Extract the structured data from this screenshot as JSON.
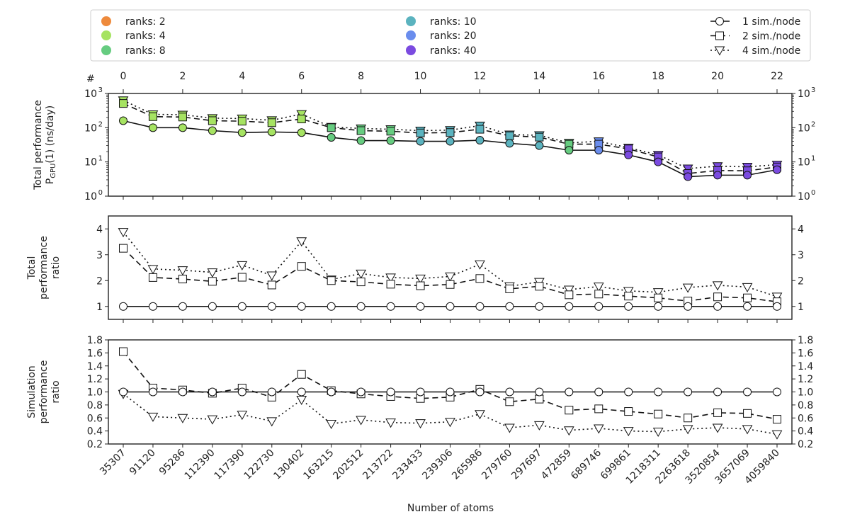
{
  "chart_data": {
    "type": "line",
    "xlabel": "Number of atoms",
    "top_axis_marker": "#",
    "top_axis_ticks": [
      "0",
      "2",
      "4",
      "6",
      "8",
      "10",
      "12",
      "14",
      "16",
      "18",
      "20",
      "22"
    ],
    "categories": [
      "35307",
      "91120",
      "95286",
      "112390",
      "117390",
      "122730",
      "130402",
      "163215",
      "202512",
      "213722",
      "233433",
      "239306",
      "265986",
      "279760",
      "297697",
      "472859",
      "689746",
      "699861",
      "1218311",
      "2263618",
      "3520854",
      "3657069",
      "4059840"
    ],
    "legend": {
      "ranks": [
        {
          "label": "ranks: 2",
          "color": "#ee8a3c"
        },
        {
          "label": "ranks: 4",
          "color": "#a6e362"
        },
        {
          "label": "ranks: 8",
          "color": "#66cc80"
        },
        {
          "label": "ranks: 10",
          "color": "#5bb3bf"
        },
        {
          "label": "ranks: 20",
          "color": "#6a8ded"
        },
        {
          "label": "ranks: 40",
          "color": "#7b4be0"
        }
      ],
      "styles": [
        {
          "label": "1 sim./node",
          "dash": "solid",
          "marker": "circle"
        },
        {
          "label": "2 sim./node",
          "dash": "dashed",
          "marker": "square"
        },
        {
          "label": "4 sim./node",
          "dash": "dotted",
          "marker": "triangle-down"
        }
      ]
    },
    "rank_index_per_point": [
      1,
      1,
      1,
      1,
      1,
      1,
      1,
      2,
      2,
      2,
      3,
      3,
      3,
      3,
      3,
      2,
      4,
      5,
      5,
      5,
      5,
      5,
      5
    ],
    "panels": [
      {
        "ylabel_lines": [
          "Total performance",
          "P",
          "GPU",
          "(1) (ns/day)"
        ],
        "scale": "log",
        "ylim": [
          1,
          1000
        ],
        "ytick_labels": [
          "10",
          "10",
          "10",
          "10"
        ],
        "ytick_exponents": [
          "0",
          "1",
          "2",
          "3"
        ],
        "series": [
          {
            "name": "1 sim./node",
            "values": [
              160,
              100,
              100,
              82,
              72,
              75,
              72,
              52,
              42,
              42,
              40,
              40,
              43,
              35,
              30,
              22,
              22,
              16,
              10,
              3.7,
              4.1,
              4.1,
              5.9
            ]
          },
          {
            "name": "2 sim./node",
            "values": [
              510,
              210,
              205,
              160,
              155,
              140,
              180,
              100,
              82,
              79,
              70,
              72,
              90,
              58,
              53,
              33,
              33,
              24,
              14,
              4.6,
              5.6,
              5.5,
              7.1
            ]
          },
          {
            "name": "4 sim./node",
            "values": [
              630,
              245,
              240,
              190,
              185,
              165,
              250,
              105,
              95,
              90,
              82,
              85,
              115,
              63,
              60,
              36,
              40,
              26,
              16,
              6.4,
              7.5,
              7.2,
              8.3
            ]
          }
        ]
      },
      {
        "ylabel_lines": [
          "Total",
          "performance",
          "ratio"
        ],
        "scale": "linear",
        "ylim": [
          0.5,
          4.5
        ],
        "yticks": [
          1,
          2,
          3,
          4
        ],
        "ytick_labels": [
          "1",
          "2",
          "3",
          "4"
        ],
        "series": [
          {
            "name": "1 sim./node",
            "values": [
              1,
              1,
              1,
              1,
              1,
              1,
              1,
              1,
              1,
              1,
              1,
              1,
              1,
              1,
              1,
              1,
              1,
              1,
              1,
              1,
              1,
              1,
              1
            ]
          },
          {
            "name": "2 sim./node",
            "values": [
              3.25,
              2.12,
              2.06,
              1.97,
              2.13,
              1.83,
              2.55,
              2.0,
              1.95,
              1.86,
              1.8,
              1.85,
              2.08,
              1.68,
              1.78,
              1.45,
              1.48,
              1.4,
              1.33,
              1.21,
              1.37,
              1.33,
              1.18
            ]
          },
          {
            "name": "4 sim./node",
            "values": [
              3.88,
              2.45,
              2.4,
              2.32,
              2.6,
              2.2,
              3.52,
              2.04,
              2.27,
              2.12,
              2.08,
              2.16,
              2.63,
              1.78,
              1.95,
              1.65,
              1.77,
              1.6,
              1.55,
              1.73,
              1.82,
              1.75,
              1.38
            ]
          }
        ]
      },
      {
        "ylabel_lines": [
          "Simulation",
          "performance",
          "ratio"
        ],
        "scale": "linear",
        "ylim": [
          0.2,
          1.8
        ],
        "yticks": [
          0.2,
          0.4,
          0.6,
          0.8,
          1.0,
          1.2,
          1.4,
          1.6,
          1.8
        ],
        "ytick_labels": [
          "0.2",
          "0.4",
          "0.6",
          "0.8",
          "1.0",
          "1.2",
          "1.4",
          "1.6",
          "1.8"
        ],
        "series": [
          {
            "name": "1 sim./node",
            "values": [
              1,
              1,
              1,
              1,
              1,
              1,
              1,
              1,
              1,
              1,
              1,
              1,
              1,
              1,
              1,
              1,
              1,
              1,
              1,
              1,
              1,
              1,
              1
            ]
          },
          {
            "name": "2 sim./node",
            "values": [
              1.62,
              1.06,
              1.03,
              0.98,
              1.06,
              0.92,
              1.27,
              1.02,
              0.97,
              0.93,
              0.9,
              0.92,
              1.04,
              0.85,
              0.89,
              0.72,
              0.74,
              0.7,
              0.66,
              0.6,
              0.68,
              0.67,
              0.58
            ]
          },
          {
            "name": "4 sim./node",
            "values": [
              0.97,
              0.62,
              0.6,
              0.58,
              0.65,
              0.55,
              0.88,
              0.51,
              0.57,
              0.53,
              0.52,
              0.54,
              0.66,
              0.45,
              0.49,
              0.41,
              0.44,
              0.4,
              0.39,
              0.43,
              0.45,
              0.43,
              0.35
            ]
          }
        ]
      }
    ]
  }
}
